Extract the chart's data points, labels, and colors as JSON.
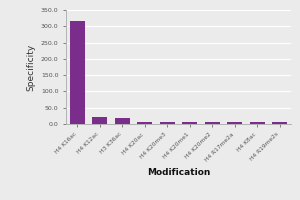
{
  "categories": [
    "H4 K16ac",
    "H4 K12ac",
    "H3 K36ac",
    "H4 K20ac",
    "H4 K20me3",
    "H4 K20me1",
    "H4 K20me2",
    "H4 R17me2a",
    "H4 K8ac",
    "H4 R19me2s"
  ],
  "values": [
    315,
    22,
    17,
    7,
    6,
    6,
    7,
    7,
    5,
    5
  ],
  "bar_color": "#7b2d8b",
  "ylabel": "Specificity",
  "xlabel": "Modification",
  "ylim": [
    0,
    350
  ],
  "yticks": [
    0,
    50,
    100,
    150,
    200,
    250,
    300,
    350
  ],
  "ytick_labels": [
    "0.0",
    "50.0",
    "100.0",
    "150.0",
    "200.0",
    "250.0",
    "300.0",
    "350.0"
  ],
  "background_color": "#ebebeb",
  "plot_bg_color": "#ebebeb",
  "grid_color": "#ffffff",
  "spine_color": "#aaaaaa"
}
